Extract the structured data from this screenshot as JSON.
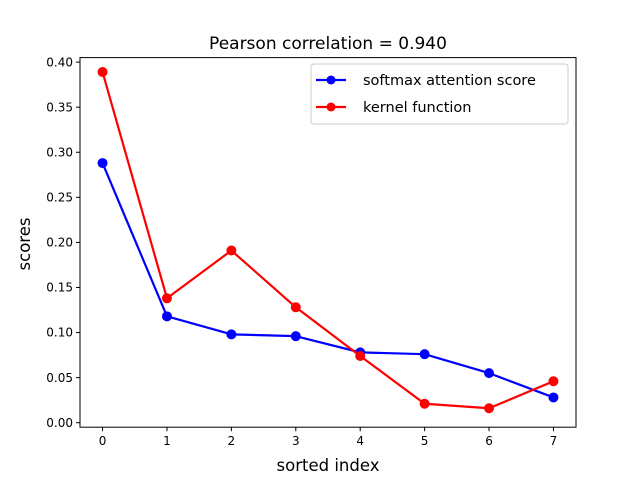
{
  "chart_data": {
    "type": "line",
    "title": "Pearson correlation =  0.940",
    "xlabel": "sorted index",
    "ylabel": "scores",
    "x": [
      0,
      1,
      2,
      3,
      4,
      5,
      6,
      7
    ],
    "xlim": [
      -0.35,
      7.35
    ],
    "ylim": [
      -0.005,
      0.405
    ],
    "x_ticks": [
      0,
      1,
      2,
      3,
      4,
      5,
      6,
      7
    ],
    "y_ticks": [
      0.0,
      0.05,
      0.1,
      0.15,
      0.2,
      0.25,
      0.3,
      0.35,
      0.4
    ],
    "y_tick_labels": [
      "0.00",
      "0.05",
      "0.10",
      "0.15",
      "0.20",
      "0.25",
      "0.30",
      "0.35",
      "0.40"
    ],
    "grid": false,
    "legend_position": "top-right",
    "series": [
      {
        "name": "softmax attention score",
        "color": "#0000ff",
        "values": [
          0.288,
          0.118,
          0.098,
          0.096,
          0.078,
          0.076,
          0.055,
          0.028
        ]
      },
      {
        "name": "kernel function",
        "color": "#ff0000",
        "values": [
          0.389,
          0.138,
          0.191,
          0.128,
          0.074,
          0.021,
          0.016,
          0.046
        ]
      }
    ]
  }
}
